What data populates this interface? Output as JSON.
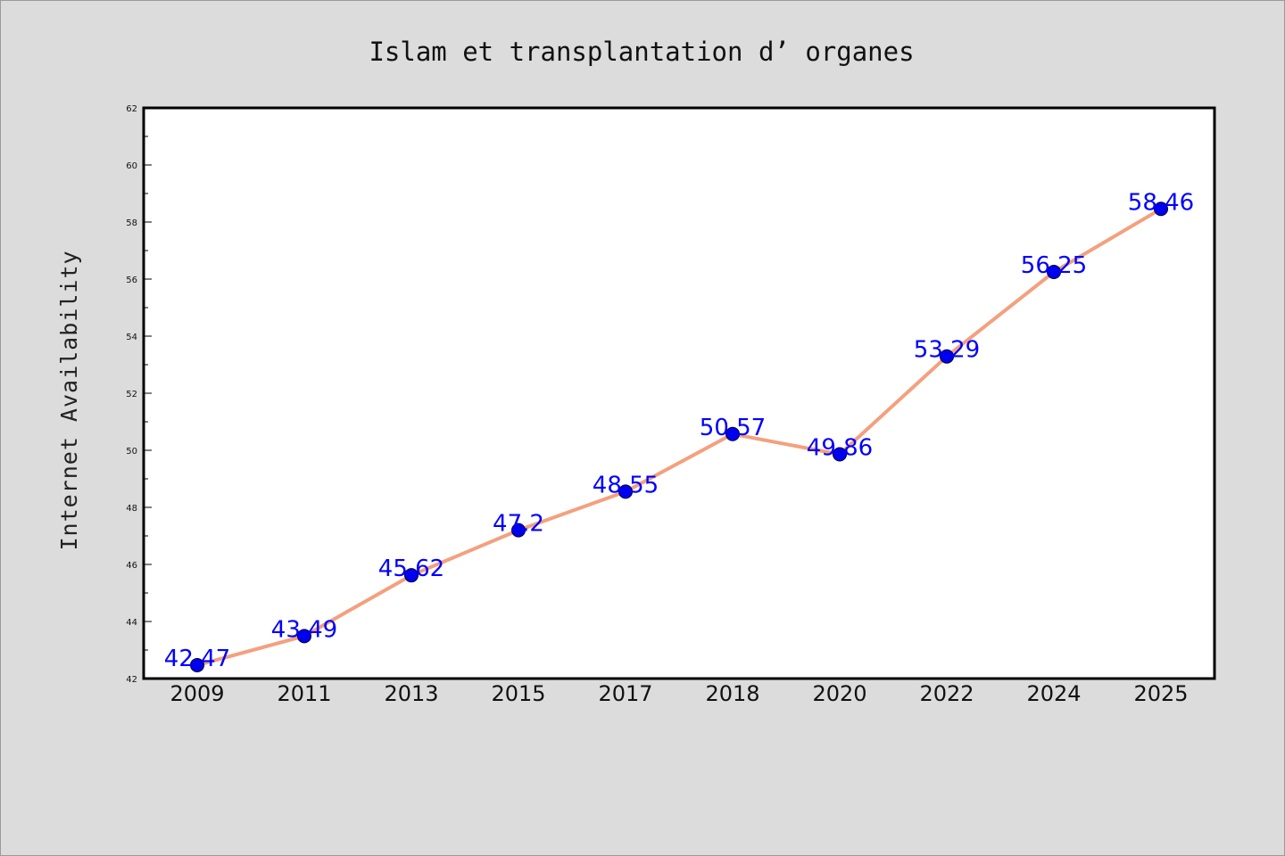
{
  "chart_data": {
    "type": "line",
    "title": "Islam et transplantation d’ organes",
    "xlabel": "",
    "ylabel": "Internet Availability",
    "categories": [
      "2009",
      "2011",
      "2013",
      "2015",
      "2017",
      "2018",
      "2020",
      "2022",
      "2024",
      "2025"
    ],
    "series": [
      {
        "values": [
          42.47,
          43.49,
          45.62,
          47.2,
          48.55,
          50.57,
          49.86,
          53.29,
          56.25,
          58.46
        ],
        "data_labels": [
          "42.47",
          "43.49",
          "45.62",
          "47.2",
          "48.55",
          "50.57",
          "49.86",
          "53.29",
          "56.25",
          "58.46"
        ]
      }
    ],
    "ylim": [
      42,
      62
    ],
    "y_ticks": [
      "42",
      "44",
      "46",
      "48",
      "50",
      "52",
      "54",
      "56",
      "58",
      "60",
      "62"
    ],
    "grid": false,
    "legend": "none",
    "colors": {
      "line": "#f4a07e",
      "marker": "#0000ee",
      "data_label": "#0000ff",
      "plot_background": "#ffffff",
      "figure_background": "#dcdcdc"
    }
  }
}
